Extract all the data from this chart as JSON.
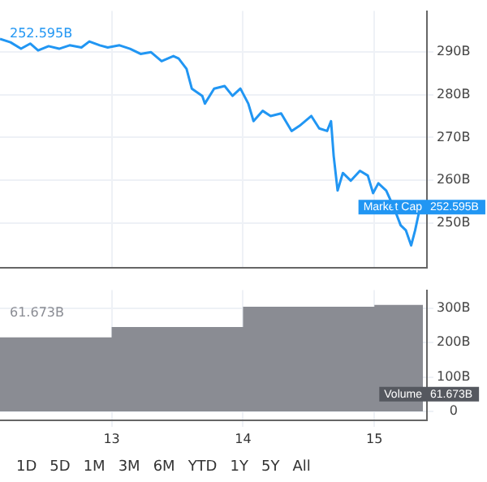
{
  "chart_data": [
    {
      "type": "line",
      "xlim": [
        12.15,
        15.4
      ],
      "xticks": [
        13,
        14,
        15
      ],
      "ylim": [
        239.5,
        299.5
      ],
      "yticks": [
        {
          "value": 250,
          "label": "250B"
        },
        {
          "value": 260,
          "label": "260B"
        },
        {
          "value": 270,
          "label": "270B"
        },
        {
          "value": 280,
          "label": "280B"
        },
        {
          "value": 290,
          "label": "290B"
        }
      ],
      "grid": true,
      "tick_labels": "y",
      "series": [
        {
          "name": "Market Cap",
          "color": "#2196f3",
          "x": [
            12.15,
            12.23,
            12.31,
            12.38,
            12.44,
            12.52,
            12.6,
            12.68,
            12.77,
            12.83,
            12.91,
            12.97,
            13.06,
            13.14,
            13.22,
            13.3,
            13.38,
            13.47,
            13.51,
            13.57,
            13.61,
            13.69,
            13.71,
            13.78,
            13.86,
            13.92,
            13.98,
            14.04,
            14.08,
            14.15,
            14.21,
            14.29,
            14.37,
            14.43,
            14.52,
            14.58,
            14.64,
            14.67,
            14.69,
            14.72,
            14.76,
            14.82,
            14.89,
            14.95,
            14.99,
            15.03,
            15.09,
            15.15,
            15.2,
            15.24,
            15.28,
            15.31,
            15.34
          ],
          "values": [
            293.0,
            292.2,
            290.7,
            291.9,
            290.3,
            291.3,
            290.7,
            291.5,
            291.0,
            292.4,
            291.5,
            291.0,
            291.5,
            290.7,
            289.5,
            289.9,
            287.8,
            289.0,
            288.4,
            286.0,
            281.4,
            279.7,
            277.9,
            281.4,
            282.0,
            279.7,
            281.4,
            277.9,
            273.8,
            276.2,
            275.0,
            275.6,
            271.5,
            272.7,
            275.0,
            272.1,
            271.5,
            273.8,
            265.7,
            257.6,
            261.7,
            259.9,
            262.2,
            261.1,
            257.0,
            259.3,
            257.6,
            253.5,
            249.5,
            248.3,
            244.8,
            248.3,
            252.6
          ]
        }
      ],
      "annotations": [
        "252.595B",
        "252.595B"
      ]
    },
    {
      "type": "area",
      "xlim": [
        12.15,
        15.4
      ],
      "xticks": [
        13,
        14,
        15
      ],
      "ylim": [
        -26,
        352
      ],
      "yticks": [
        0,
        {
          "value": 100,
          "label": "100B"
        },
        {
          "value": 200,
          "label": "200B"
        },
        {
          "value": 300,
          "label": "300B"
        }
      ],
      "grid": true,
      "series": [
        {
          "name": "Volume",
          "color": "#8a8c93",
          "x": [
            12.15,
            13,
            13,
            14,
            14,
            15,
            15,
            15.37
          ],
          "values": [
            215,
            215,
            245,
            245,
            304,
            304,
            309,
            309
          ]
        }
      ],
      "annotations": [
        "61.673B",
        "61.673B"
      ]
    },
    {
      "type": "other",
      "annotations": [
        "1D",
        "5D",
        "1M",
        "3M",
        "6M",
        "YTD",
        "1Y",
        "5Y",
        "All"
      ]
    }
  ]
}
